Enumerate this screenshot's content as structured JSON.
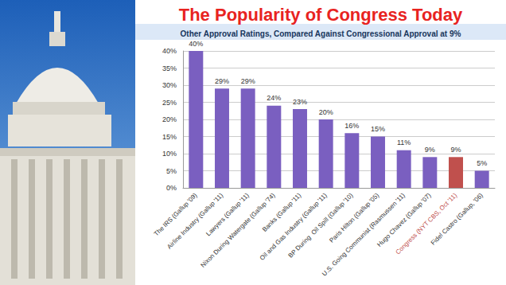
{
  "chart_data": {
    "type": "bar",
    "title": "The Popularity of Congress Today",
    "subtitle": "Other Approval Ratings, Compared Against Congressional Approval at 9%",
    "categories": [
      "The IRS (Gallup '09)",
      "Airline Industry (Gallup '11)",
      "Lawyers (Gallup '11)",
      "Nixon During Watergate (Gallup '74)",
      "Banks (Gallup '11)",
      "Oil and Gas Industry (Gallup '11)",
      "BP During  Oil Spill (Gallup '10)",
      "Paris Hilton (Gallup '05)",
      "U.S. Going Communist (Rasmussen '11)",
      "Hugo Chavez (Gallup '07)",
      "Congress (NYT CBS, Oct '11)",
      "Fidel Castro (Gallup, '06)"
    ],
    "values": [
      40,
      29,
      29,
      24,
      23,
      20,
      16,
      15,
      11,
      9,
      9,
      5
    ],
    "value_labels": [
      "40%",
      "29%",
      "29%",
      "24%",
      "23%",
      "20%",
      "16%",
      "15%",
      "11%",
      "9%",
      "9%",
      "5%"
    ],
    "colors": [
      "#7a5fc0",
      "#7a5fc0",
      "#7a5fc0",
      "#7a5fc0",
      "#7a5fc0",
      "#7a5fc0",
      "#7a5fc0",
      "#7a5fc0",
      "#7a5fc0",
      "#7a5fc0",
      "#c0504d",
      "#7a5fc0"
    ],
    "ylim": [
      0,
      40
    ],
    "yticks": [
      {
        "value": 0,
        "label": "0%"
      },
      {
        "value": 5,
        "label": "5%"
      },
      {
        "value": 10,
        "label": "10%"
      },
      {
        "value": 15,
        "label": "15%"
      },
      {
        "value": 20,
        "label": "20%"
      },
      {
        "value": 25,
        "label": "25%"
      },
      {
        "value": 30,
        "label": "30%"
      },
      {
        "value": 35,
        "label": "35%"
      },
      {
        "value": 40,
        "label": "40%"
      }
    ],
    "grid": true,
    "data_labels": true
  }
}
